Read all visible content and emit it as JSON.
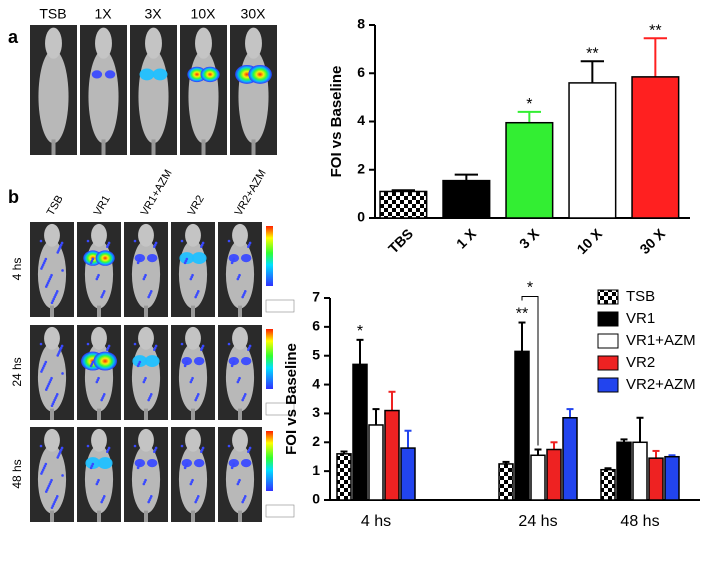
{
  "chart_data": [
    {
      "type": "bar",
      "ylabel": "FOI vs Baseline",
      "categories": [
        "TBS",
        "1 X",
        "3 X",
        "10 X",
        "30 X"
      ],
      "values": [
        1.1,
        1.55,
        3.95,
        5.6,
        5.85
      ],
      "errors": [
        0.05,
        0.25,
        0.45,
        0.9,
        1.6
      ],
      "colors": [
        "#ffffff",
        "#000000",
        "#33ee33",
        "#ffffff",
        "#ff2020"
      ],
      "checkered": [
        true,
        false,
        false,
        false,
        false
      ],
      "ylim": [
        0,
        8
      ],
      "yticks": [
        0,
        2,
        4,
        6,
        8
      ],
      "annotations": [
        {
          "label": "*",
          "category": "3 X"
        },
        {
          "label": "**",
          "category": "10 X"
        },
        {
          "label": "**",
          "category": "30 X"
        }
      ]
    },
    {
      "type": "bar",
      "ylabel": "FOI vs Baseline",
      "categories": [
        "4 hs",
        "24 hs",
        "48 hs"
      ],
      "series": [
        {
          "name": "TSB",
          "color": "#ffffff",
          "checkered": true,
          "values": [
            1.6,
            1.25,
            1.05
          ],
          "errors": [
            0.08,
            0.07,
            0.05
          ]
        },
        {
          "name": "VR1",
          "color": "#000000",
          "values": [
            4.7,
            5.15,
            2.0
          ],
          "errors": [
            0.85,
            1.0,
            0.1
          ]
        },
        {
          "name": "VR1+AZM",
          "color": "#ffffff",
          "values": [
            2.6,
            1.55,
            2.0
          ],
          "errors": [
            0.55,
            0.2,
            0.85
          ]
        },
        {
          "name": "VR2",
          "color": "#ee2222",
          "values": [
            3.1,
            1.75,
            1.45
          ],
          "errors": [
            0.65,
            0.25,
            0.25
          ]
        },
        {
          "name": "VR2+AZM",
          "color": "#2244ee",
          "values": [
            1.8,
            2.85,
            1.5
          ],
          "errors": [
            0.6,
            0.3,
            0.05
          ]
        }
      ],
      "ylim": [
        0,
        7
      ],
      "yticks": [
        0,
        1,
        2,
        3,
        4,
        5,
        6,
        7
      ],
      "annotations": [
        {
          "label": "*",
          "category": "4 hs",
          "series": "VR1"
        },
        {
          "label": "**",
          "category": "24 hs",
          "series": "VR1"
        },
        {
          "label": "*",
          "category": "24 hs",
          "series": "VR1",
          "to": "VR1+AZM"
        }
      ]
    }
  ],
  "figure": {
    "panel_a": {
      "letter": "a",
      "columns": [
        "TSB",
        "1X",
        "3X",
        "10X",
        "30X"
      ]
    },
    "panel_b": {
      "letter": "b",
      "columns": [
        "TSB",
        "VR1",
        "VR1+AZM",
        "VR2",
        "VR2+AZM"
      ],
      "rows": [
        "4 hs",
        "24 hs",
        "48 hs"
      ]
    }
  }
}
